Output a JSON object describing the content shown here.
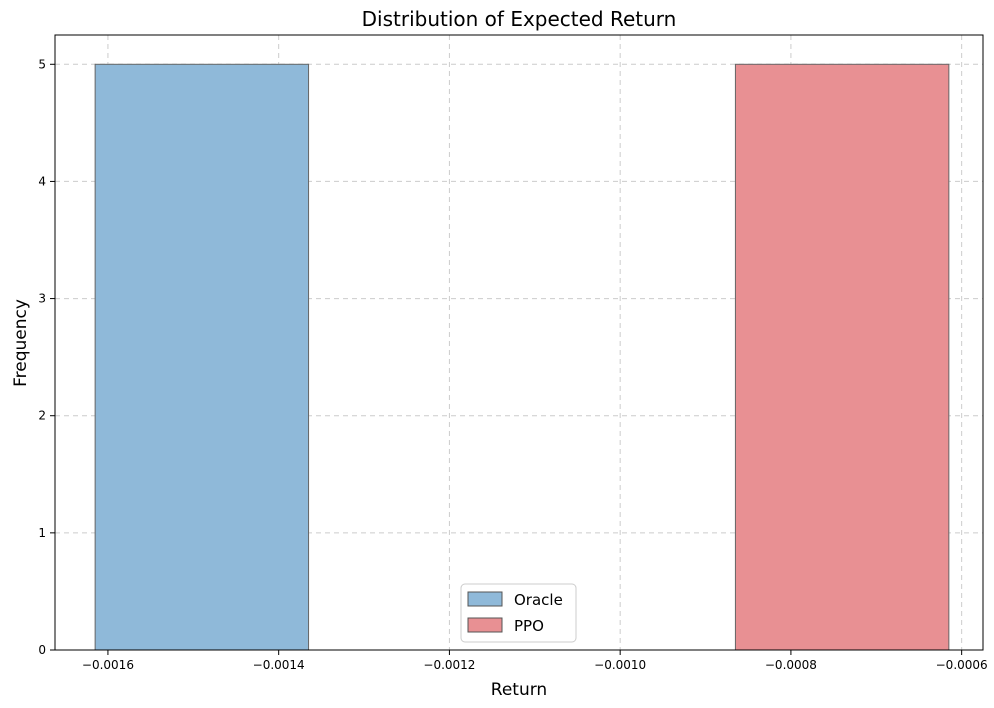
{
  "chart_data": {
    "type": "bar",
    "title": "Distribution of Expected Return",
    "xlabel": "Return",
    "ylabel": "Frequency",
    "xlim": [
      -0.001662,
      -0.000575
    ],
    "ylim": [
      0,
      5.25
    ],
    "grid": true,
    "legend_position": "bottom-center",
    "x_ticks": [
      -0.0016,
      -0.0014,
      -0.0012,
      -0.001,
      -0.0008,
      -0.0006
    ],
    "x_tick_labels": [
      "−0.0016",
      "−0.0014",
      "−0.0012",
      "−0.0010",
      "−0.0008",
      "−0.0006"
    ],
    "y_ticks": [
      0,
      1,
      2,
      3,
      4,
      5
    ],
    "y_tick_labels": [
      "0",
      "1",
      "2",
      "3",
      "4",
      "5"
    ],
    "series": [
      {
        "name": "Oracle",
        "color": "#8fb9d9",
        "bins": [
          {
            "x0": -0.001615,
            "x1": -0.001365,
            "count": 5
          }
        ]
      },
      {
        "name": "PPO",
        "color": "#e89093",
        "bins": [
          {
            "x0": -0.000865,
            "x1": -0.000615,
            "count": 5
          }
        ]
      }
    ]
  }
}
